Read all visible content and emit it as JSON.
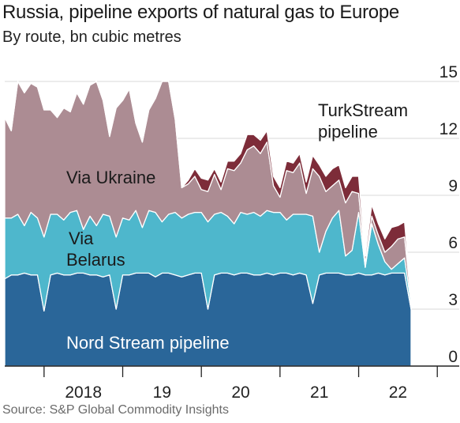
{
  "chart_data": {
    "type": "area",
    "title": "Russia, pipeline exports of natural gas to Europe",
    "subtitle": "By route, bn cubic metres",
    "source": "Source: S&P Global Commodity Insights",
    "x_tick_labels": [
      "2018",
      "19",
      "20",
      "21",
      "22"
    ],
    "y_tick_labels": [
      "0",
      "3",
      "6",
      "9",
      "12",
      "15"
    ],
    "ylim": [
      0,
      15
    ],
    "xlim": [
      "2017-07",
      "2022-11"
    ],
    "x": [
      "2017-07",
      "2017-08",
      "2017-09",
      "2017-10",
      "2017-11",
      "2017-12",
      "2018-01",
      "2018-02",
      "2018-03",
      "2018-04",
      "2018-05",
      "2018-06",
      "2018-07",
      "2018-08",
      "2018-09",
      "2018-10",
      "2018-11",
      "2018-12",
      "2019-01",
      "2019-02",
      "2019-03",
      "2019-04",
      "2019-05",
      "2019-06",
      "2019-07",
      "2019-08",
      "2019-09",
      "2019-10",
      "2019-11",
      "2019-12",
      "2020-01",
      "2020-02",
      "2020-03",
      "2020-04",
      "2020-05",
      "2020-06",
      "2020-07",
      "2020-08",
      "2020-09",
      "2020-10",
      "2020-11",
      "2020-12",
      "2021-01",
      "2021-02",
      "2021-03",
      "2021-04",
      "2021-05",
      "2021-06",
      "2021-07",
      "2021-08",
      "2021-09",
      "2021-10",
      "2021-11",
      "2021-12",
      "2022-01",
      "2022-02",
      "2022-03",
      "2022-04",
      "2022-05",
      "2022-06",
      "2022-07",
      "2022-08",
      "2022-09"
    ],
    "series": [
      {
        "name": "Nord Stream pipeline",
        "color": "#2a6699",
        "values": [
          4.6,
          4.8,
          4.8,
          4.9,
          4.8,
          4.8,
          2.9,
          4.8,
          4.9,
          4.8,
          4.8,
          4.9,
          4.9,
          4.8,
          4.8,
          4.7,
          4.8,
          3.0,
          4.8,
          4.8,
          4.9,
          4.9,
          4.9,
          4.7,
          4.9,
          4.9,
          4.8,
          4.7,
          4.8,
          4.9,
          4.9,
          3.0,
          4.8,
          4.9,
          4.9,
          4.8,
          4.9,
          4.9,
          4.8,
          4.8,
          4.9,
          4.8,
          4.9,
          4.9,
          4.8,
          4.9,
          4.8,
          3.3,
          4.8,
          4.9,
          4.9,
          4.9,
          4.8,
          4.8,
          4.9,
          4.8,
          4.8,
          4.9,
          4.8,
          4.9,
          4.9,
          4.9,
          3.0
        ]
      },
      {
        "name": "Via Belarus",
        "color": "#4eb7cc",
        "values": [
          3.2,
          3.0,
          3.2,
          2.5,
          3.3,
          3.0,
          3.9,
          3.2,
          3.1,
          2.9,
          3.3,
          3.3,
          2.3,
          3.1,
          2.6,
          3.3,
          3.1,
          3.8,
          3.0,
          2.9,
          3.3,
          2.4,
          3.3,
          3.4,
          2.7,
          3.1,
          3.3,
          3.1,
          3.2,
          3.2,
          3.2,
          4.6,
          3.2,
          3.2,
          3.0,
          2.7,
          3.2,
          3.1,
          3.3,
          3.1,
          3.3,
          3.3,
          3.2,
          2.8,
          3.2,
          3.1,
          3.2,
          4.6,
          1.2,
          2.2,
          2.9,
          3.3,
          1.0,
          1.3,
          3.2,
          0.4,
          2.7,
          1.5,
          0.7,
          0.2,
          0.5,
          0.8,
          0.3
        ]
      },
      {
        "name": "Via Ukraine",
        "color": "#ac8c93",
        "values": [
          5.3,
          4.6,
          7.0,
          7.0,
          6.8,
          6.9,
          6.7,
          5.5,
          5.1,
          5.9,
          5.3,
          6.2,
          6.6,
          6.9,
          7.6,
          6.0,
          4.2,
          6.8,
          6.2,
          6.9,
          4.6,
          4.5,
          5.3,
          6.0,
          7.4,
          7.0,
          4.9,
          1.6,
          1.6,
          1.9,
          1.2,
          1.6,
          2.1,
          1.2,
          2.5,
          2.8,
          2.6,
          3.4,
          3.5,
          3.3,
          3.6,
          1.4,
          0.8,
          2.6,
          2.2,
          2.7,
          1.1,
          2.5,
          4.0,
          2.1,
          1.7,
          1.6,
          2.8,
          3.1,
          1.0,
          0.2,
          0.4,
          0.5,
          0.5,
          1.2,
          1.3,
          1.1,
          0.2
        ]
      },
      {
        "name": "TurkStream pipeline",
        "color": "#7d2c39",
        "values": [
          0,
          0,
          0,
          0,
          0,
          0,
          0,
          0,
          0,
          0,
          0,
          0,
          0,
          0,
          0,
          0,
          0,
          0,
          0,
          0,
          0,
          0,
          0,
          0,
          0,
          0,
          0,
          0,
          0.2,
          0.4,
          0.6,
          0.6,
          0.3,
          0.4,
          0.4,
          0.5,
          0.5,
          0.8,
          0.6,
          0.7,
          0.6,
          0.5,
          0.5,
          0.5,
          0.5,
          0.5,
          0.6,
          0.7,
          0.6,
          0.8,
          0.9,
          0.8,
          0.8,
          0.8,
          0.9,
          0.4,
          0.6,
          0.6,
          0.7,
          1.0,
          0.7,
          0.8,
          0.1
        ]
      }
    ],
    "annotations": [
      {
        "text": "TurkStream",
        "series": "TurkStream pipeline"
      },
      {
        "text": "pipeline",
        "series": "TurkStream pipeline"
      },
      {
        "text": "Via Ukraine",
        "series": "Via Ukraine"
      },
      {
        "text": "Via",
        "series": "Via Belarus"
      },
      {
        "text": "Belarus",
        "series": "Via Belarus"
      },
      {
        "text": "Nord Stream pipeline",
        "series": "Nord Stream pipeline"
      }
    ],
    "grid": true,
    "y_axis_side": "right"
  }
}
